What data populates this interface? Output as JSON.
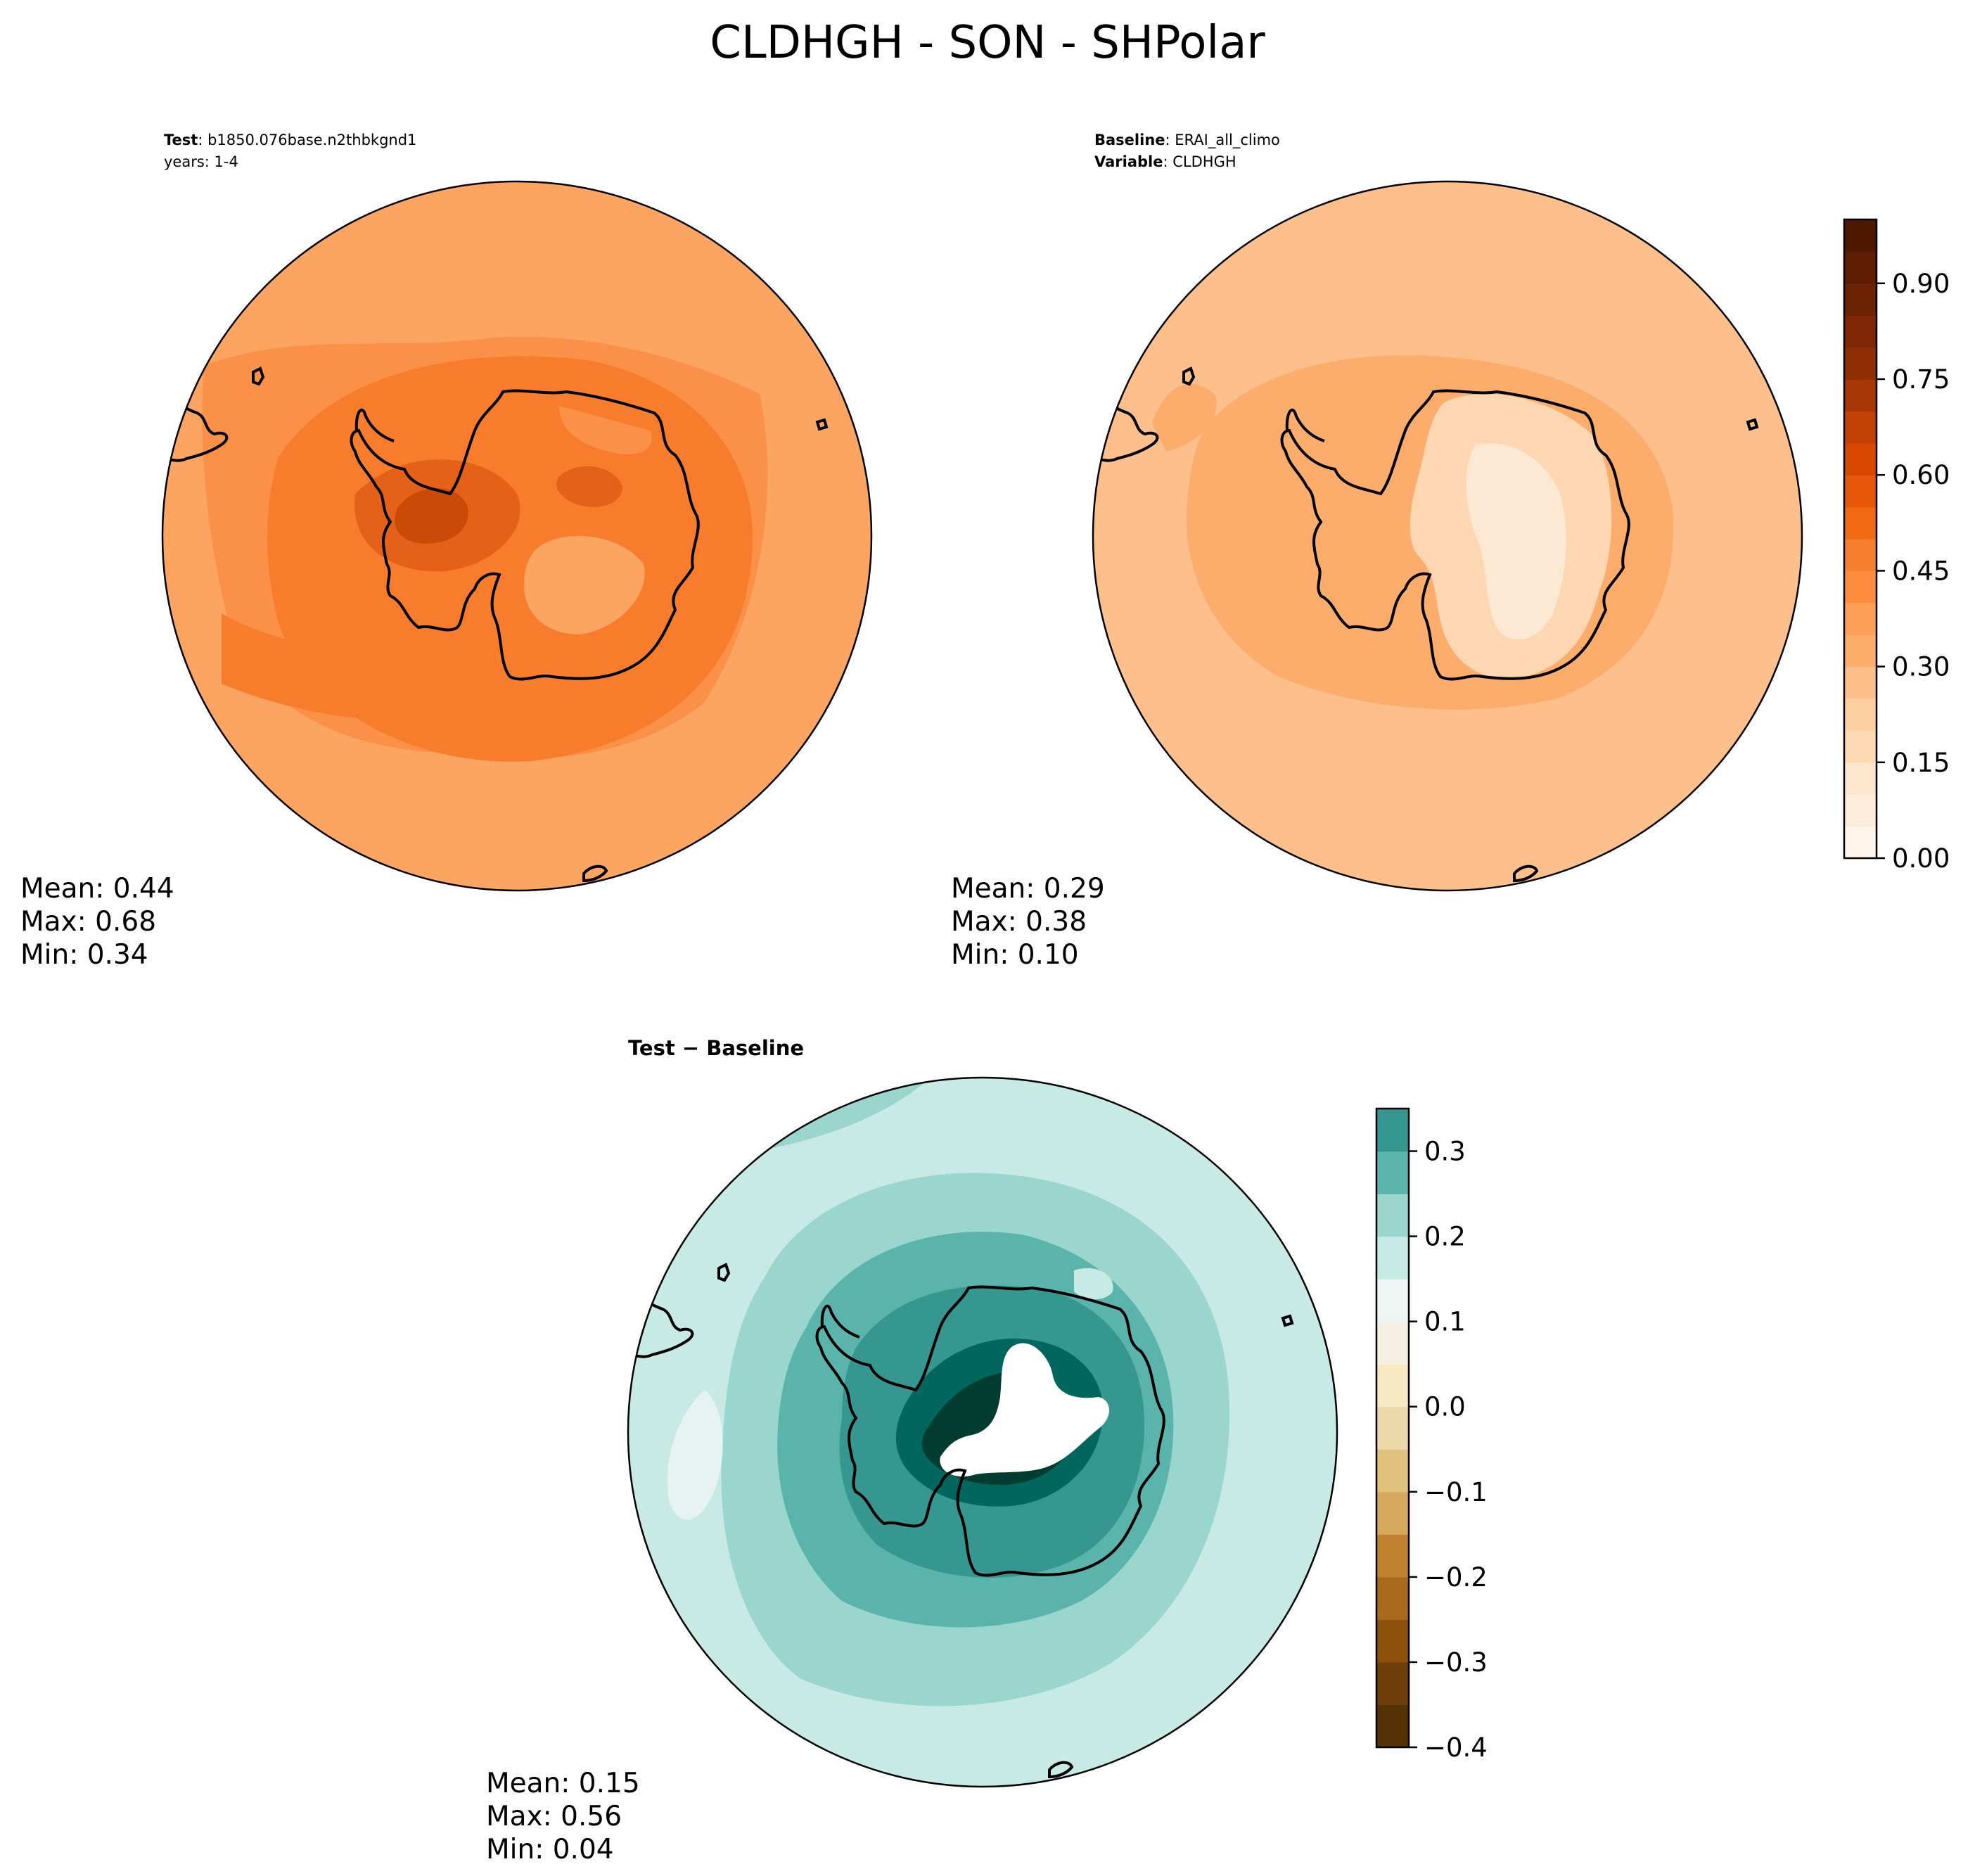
{
  "figure": {
    "title": "CLDHGH - SON - SHPolar"
  },
  "chart_data": [
    {
      "type": "heatmap",
      "panel": "test",
      "header": {
        "label": "Test",
        "separator": ": ",
        "value": "b1850.076base.n2thbkgnd1",
        "line2": "years: 1-4"
      },
      "projection": "south-polar-stereographic",
      "variable": "CLDHGH",
      "stats": {
        "mean_label": "Mean:  0.44",
        "max_label": "Max:  0.68",
        "min_label": "Min:  0.34",
        "mean": 0.44,
        "max": 0.68,
        "min": 0.34
      },
      "colorbar": "shared-oranges"
    },
    {
      "type": "heatmap",
      "panel": "baseline",
      "header": {
        "label": "Baseline",
        "separator": ": ",
        "value": "ERAI_all_climo",
        "label2": "Variable",
        "value2": "CLDHGH"
      },
      "projection": "south-polar-stereographic",
      "stats": {
        "mean_label": "Mean:  0.29",
        "max_label": "Max:  0.38",
        "min_label": "Min:  0.10",
        "mean": 0.29,
        "max": 0.38,
        "min": 0.1
      },
      "colorbar": {
        "cmap": "Oranges",
        "range": [
          0.0,
          1.0
        ],
        "level_step": 0.05,
        "tick_values": [
          0.0,
          0.15,
          0.3,
          0.45,
          0.6,
          0.75,
          0.9
        ],
        "tick_labels": [
          "0.00",
          "0.15",
          "0.30",
          "0.45",
          "0.60",
          "0.75",
          "0.90"
        ]
      }
    },
    {
      "type": "heatmap",
      "panel": "difference",
      "title": "Test − Baseline",
      "projection": "south-polar-stereographic",
      "stats": {
        "mean_label": "Mean:  0.15",
        "max_label": "Max:  0.56",
        "min_label": "Min:  0.04",
        "mean": 0.15,
        "max": 0.56,
        "min": 0.04
      },
      "colorbar": {
        "cmap": "BrBG",
        "range": [
          -0.4,
          0.35
        ],
        "level_step": 0.05,
        "tick_values": [
          0.3,
          0.2,
          0.1,
          0.0,
          -0.1,
          -0.2,
          -0.3,
          -0.4
        ],
        "tick_labels": [
          "0.3",
          "0.2",
          "0.1",
          "0.0",
          "−0.1",
          "−0.2",
          "−0.3",
          "−0.4"
        ]
      }
    }
  ],
  "colors": {
    "oranges_levels": [
      "#fff5eb",
      "#feeddc",
      "#fee6ce",
      "#fdd9b4",
      "#fdd0a2",
      "#fdc08b",
      "#fdae6b",
      "#fd9f56",
      "#fd8d3c",
      "#f67f2d",
      "#f16913",
      "#e6570a",
      "#d94801",
      "#c24003",
      "#a63603",
      "#912f04",
      "#7f2704",
      "#6e2204",
      "#5e1d03",
      "#4f1802"
    ],
    "brbg_levels": [
      "#543005",
      "#6e3f0a",
      "#8c510a",
      "#a8691c",
      "#bf812d",
      "#d4a95e",
      "#dfc27d",
      "#ecd9a9",
      "#f6e8c3",
      "#f5efe2",
      "#eef5f3",
      "#c7eae5",
      "#9ad6cd",
      "#5ab4ac",
      "#35978f",
      "#01665e",
      "#003c30"
    ],
    "map_test": [
      "#fca563",
      "#fb9148",
      "#f77d2c",
      "#e56018",
      "#cc4a07"
    ],
    "map_base": [
      "#fdbf8c",
      "#fdad6b",
      "#fcd7b2",
      "#fde8d3"
    ],
    "map_diff": [
      "#c7eae5",
      "#9ad6cd",
      "#5ab4ac",
      "#35978f",
      "#01665e",
      "#003c30",
      "#e6f3f1"
    ],
    "coast": "#000000"
  }
}
